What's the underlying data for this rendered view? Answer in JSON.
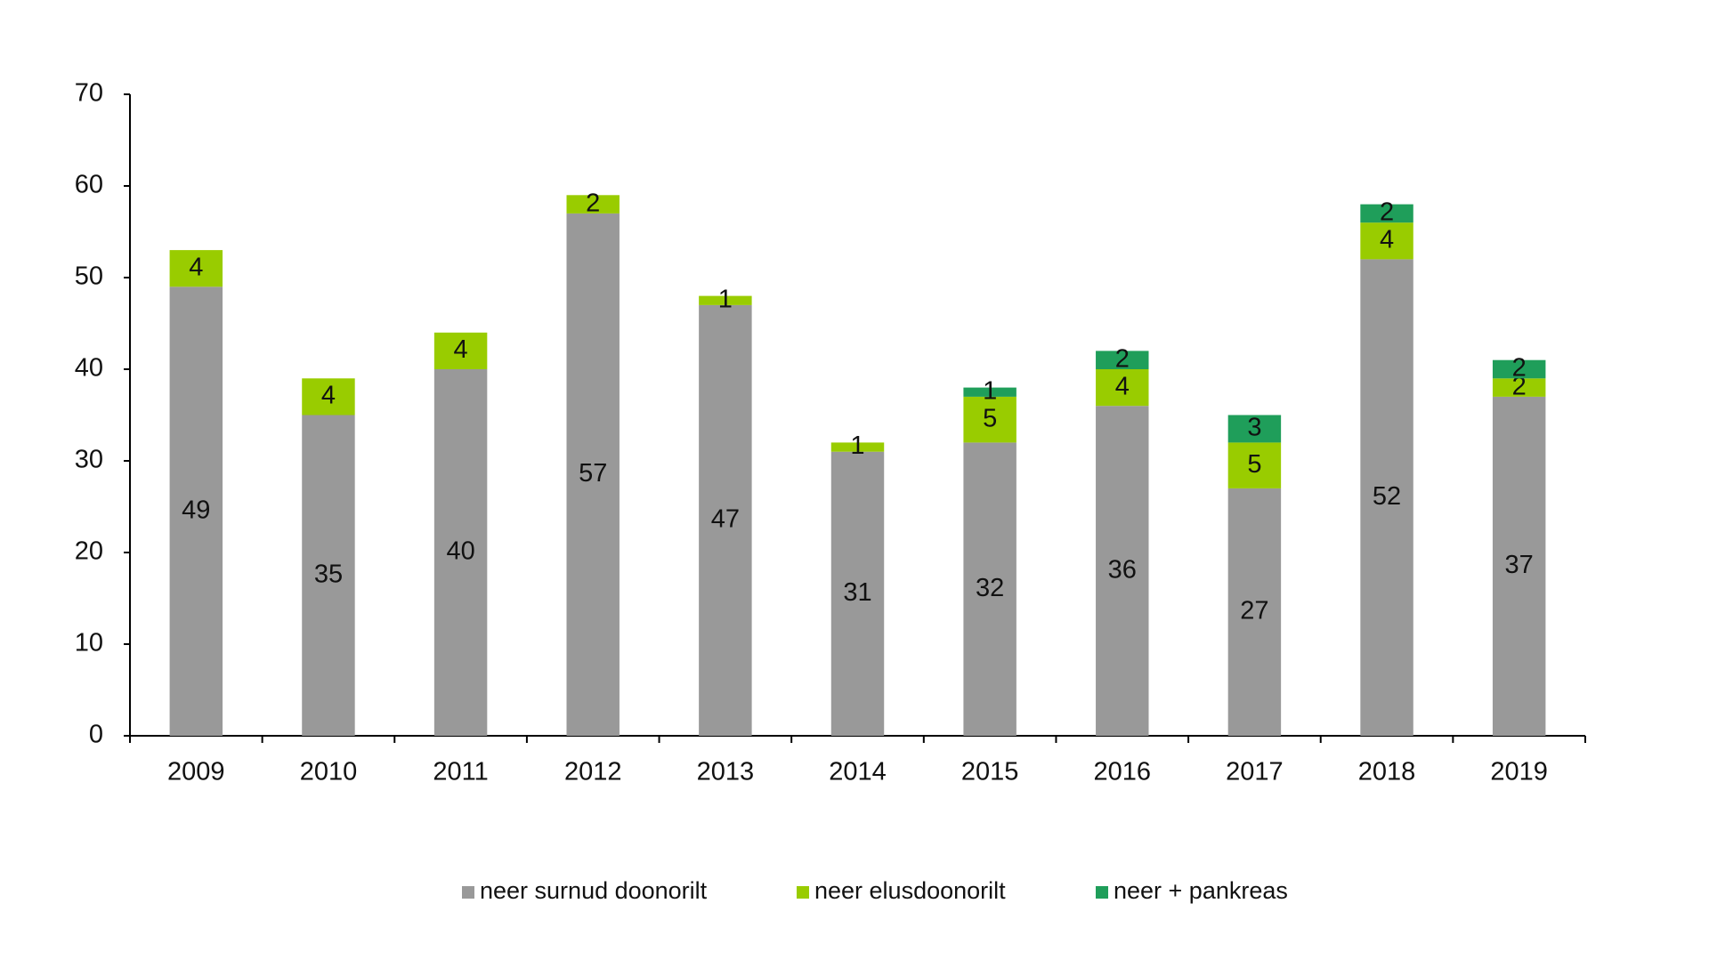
{
  "chart_data": {
    "type": "stacked-bar",
    "categories": [
      "2009",
      "2010",
      "2011",
      "2012",
      "2013",
      "2014",
      "2015",
      "2016",
      "2017",
      "2018",
      "2019"
    ],
    "series": [
      {
        "name": "neer surnud doonorilt",
        "color": "#999999",
        "values": [
          49,
          35,
          40,
          57,
          47,
          31,
          32,
          36,
          27,
          52,
          37
        ]
      },
      {
        "name": "neer elusdoonorilt",
        "color": "#99cc00",
        "values": [
          4,
          4,
          4,
          2,
          1,
          1,
          5,
          4,
          5,
          4,
          2
        ]
      },
      {
        "name": "neer + pankreas",
        "color": "#1f9e5a",
        "values": [
          null,
          null,
          null,
          null,
          null,
          null,
          1,
          2,
          3,
          2,
          2
        ]
      }
    ],
    "ylim": [
      0,
      70
    ],
    "yticks": [
      0,
      10,
      20,
      30,
      40,
      50,
      60,
      70
    ],
    "grid": false
  }
}
